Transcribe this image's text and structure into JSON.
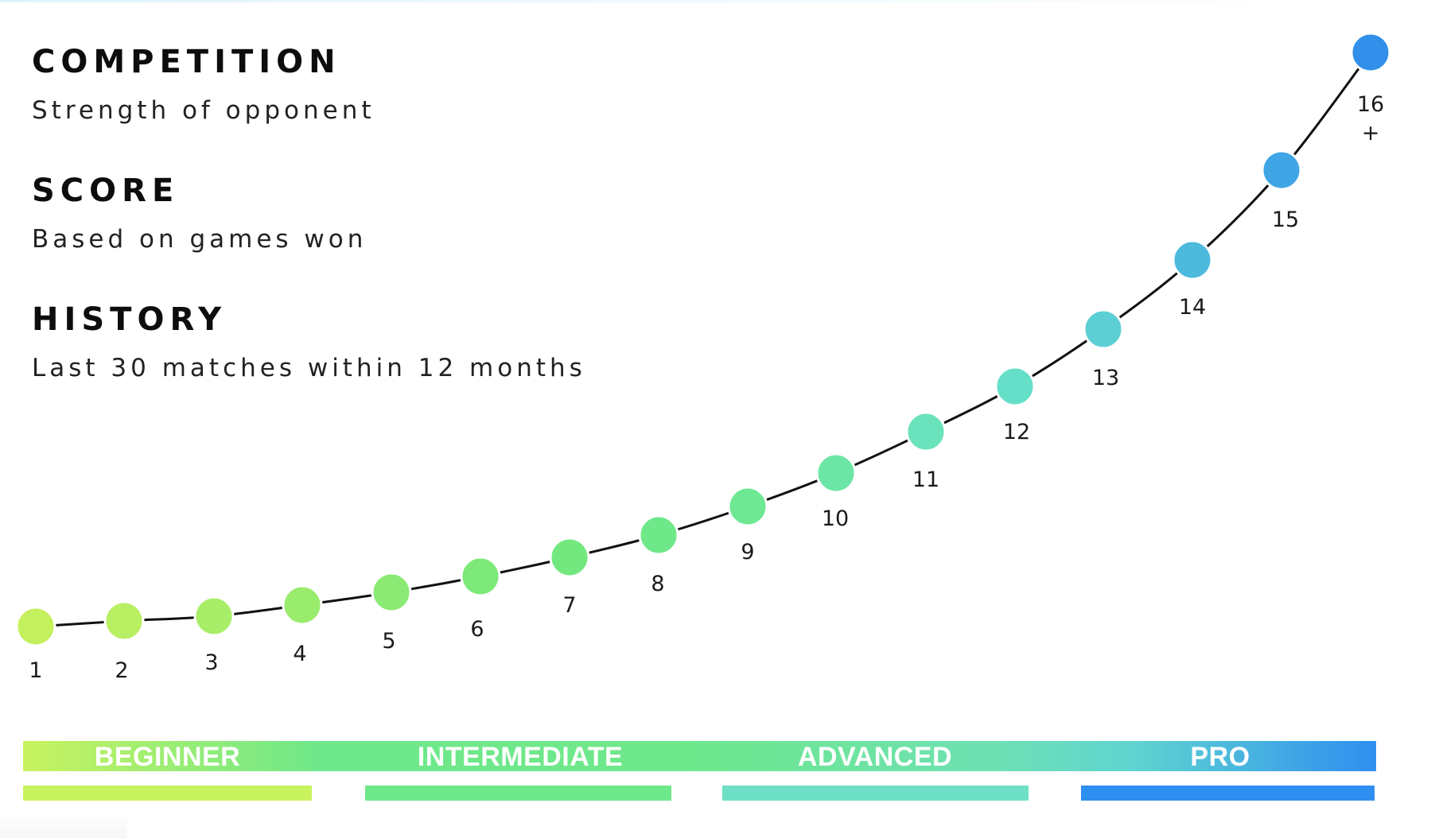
{
  "legend": {
    "competition": {
      "heading": "COMPETITION",
      "sub": "Strength of opponent"
    },
    "score": {
      "heading": "SCORE",
      "sub": "Based on games won"
    },
    "history": {
      "heading": "HISTORY",
      "sub": "Last 30 matches within 12 months"
    }
  },
  "scale": {
    "points": [
      {
        "label": "1",
        "color": "#c4f05e"
      },
      {
        "label": "2",
        "color": "#b8ef63"
      },
      {
        "label": "3",
        "color": "#a9ee68"
      },
      {
        "label": "4",
        "color": "#9aec6d"
      },
      {
        "label": "5",
        "color": "#8aea73"
      },
      {
        "label": "6",
        "color": "#7ce978"
      },
      {
        "label": "7",
        "color": "#72e87f"
      },
      {
        "label": "8",
        "color": "#6ee889"
      },
      {
        "label": "9",
        "color": "#6ee893"
      },
      {
        "label": "10",
        "color": "#6ce6a6"
      },
      {
        "label": "11",
        "color": "#6ae2bb"
      },
      {
        "label": "12",
        "color": "#66dfc9"
      },
      {
        "label": "13",
        "color": "#5ccfd4"
      },
      {
        "label": "14",
        "color": "#4cbadc"
      },
      {
        "label": "15",
        "color": "#3fa5e4"
      },
      {
        "label": "16 +",
        "label_line1": "16",
        "label_line2": "+",
        "color": "#3290ea"
      }
    ]
  },
  "levels": [
    {
      "name": "BEGINNER",
      "color": "#c8f25e"
    },
    {
      "name": "INTERMEDIATE",
      "color": "#6ee88a"
    },
    {
      "name": "ADVANCED",
      "color": "#6ee0c6"
    },
    {
      "name": "PRO",
      "color": "#2f8ff0"
    }
  ]
}
